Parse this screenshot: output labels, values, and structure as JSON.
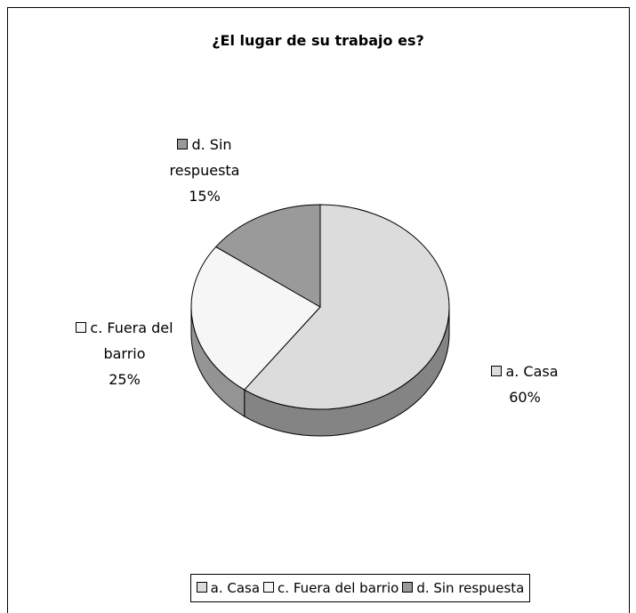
{
  "chart_data": {
    "type": "pie",
    "title": "¿El lugar de su trabajo es?",
    "categories": [
      "a. Casa",
      "c. Fuera del barrio",
      "d. Sin respuesta"
    ],
    "values": [
      60,
      25,
      15
    ],
    "value_labels": [
      "60%",
      "25%",
      "15%"
    ],
    "colors": [
      "#dcdcdc",
      "#f6f6f6",
      "#9a9a9a"
    ],
    "legend": "bottom"
  }
}
